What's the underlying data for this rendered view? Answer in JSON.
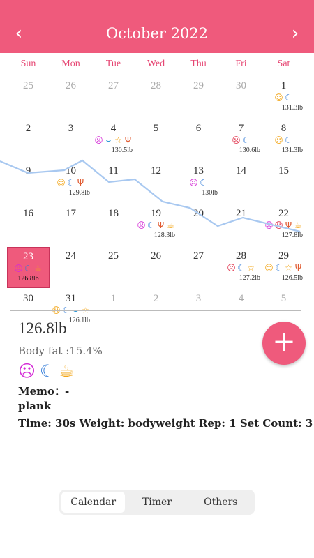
{
  "header": {
    "title": "October 2022",
    "prev_icon": "chevron-left-icon",
    "next_icon": "chevron-right-icon",
    "prev_glyph": "‹",
    "next_glyph": "›"
  },
  "weekdays": [
    "Sun",
    "Mon",
    "Tue",
    "Wed",
    "Thu",
    "Fri",
    "Sat"
  ],
  "colors": {
    "accent": "#ef5a7c",
    "weekday": "#e64572",
    "trend_line": "#a8c8f0"
  },
  "calendar": {
    "selected_day": "23",
    "weeks": [
      [
        {
          "d": "25",
          "o": true
        },
        {
          "d": "26",
          "o": true
        },
        {
          "d": "27",
          "o": true
        },
        {
          "d": "28",
          "o": true
        },
        {
          "d": "29",
          "o": true
        },
        {
          "d": "30",
          "o": true
        },
        {
          "d": "1",
          "icons": [
            "smile",
            "moon"
          ],
          "w": "131.3lb"
        }
      ],
      [
        {
          "d": "2"
        },
        {
          "d": "3"
        },
        {
          "d": "4",
          "icons": [
            "sad",
            "shoe",
            "star",
            "food"
          ],
          "w": "130.5lb"
        },
        {
          "d": "5"
        },
        {
          "d": "6"
        },
        {
          "d": "7",
          "icons": [
            "angry",
            "moon"
          ],
          "w": "130.6lb"
        },
        {
          "d": "8",
          "icons": [
            "smile",
            "moon"
          ],
          "w": "131.3lb"
        }
      ],
      [
        {
          "d": "9"
        },
        {
          "d": "10",
          "icons": [
            "smile",
            "moon",
            "food"
          ],
          "w": "129.8lb"
        },
        {
          "d": "11"
        },
        {
          "d": "12"
        },
        {
          "d": "13",
          "icons": [
            "sad",
            "moon"
          ],
          "w": "130lb"
        },
        {
          "d": "14"
        },
        {
          "d": "15"
        }
      ],
      [
        {
          "d": "16"
        },
        {
          "d": "17"
        },
        {
          "d": "18"
        },
        {
          "d": "19",
          "icons": [
            "sad",
            "moon",
            "food",
            "drink"
          ],
          "w": "128.3lb"
        },
        {
          "d": "20"
        },
        {
          "d": "21"
        },
        {
          "d": "22",
          "icons": [
            "sad",
            "angry",
            "food",
            "drink"
          ],
          "w": "127.8lb"
        }
      ],
      [
        {
          "d": "23",
          "icons": [
            "sad",
            "moon",
            "drink"
          ],
          "w": "126.8lb"
        },
        {
          "d": "24"
        },
        {
          "d": "25"
        },
        {
          "d": "26"
        },
        {
          "d": "27"
        },
        {
          "d": "28",
          "icons": [
            "angry",
            "moon",
            "star"
          ],
          "w": "127.2lb"
        },
        {
          "d": "29",
          "icons": [
            "smile",
            "moon",
            "star",
            "food"
          ],
          "w": "126.5lb"
        }
      ],
      [
        {
          "d": "30"
        },
        {
          "d": "31",
          "icons": [
            "smile",
            "moon",
            "shoe",
            "star"
          ],
          "w": "126.1lb"
        },
        {
          "d": "1",
          "o": true
        },
        {
          "d": "2",
          "o": true
        },
        {
          "d": "3",
          "o": true
        },
        {
          "d": "4",
          "o": true
        },
        {
          "d": "5",
          "o": true
        }
      ]
    ]
  },
  "icon_glyphs": {
    "smile": "☺",
    "sad": "☹",
    "moon": "☾",
    "star": "☆",
    "food": "Ψ",
    "drink": "☕",
    "angry": "☹",
    "shoe": "⌣"
  },
  "detail": {
    "weight": "126.8lb",
    "body_fat": "Body fat :15.4%",
    "icons": [
      "sad",
      "moon",
      "drink"
    ],
    "memo": "Memo：-",
    "exercise": "plank",
    "time_line": "Time: 30s  Weight: bodyweight  Rep: 1  Set Count: 3"
  },
  "fab": {
    "label": "+",
    "icon": "plus-icon"
  },
  "tabs": [
    {
      "label": "Calendar",
      "active": true
    },
    {
      "label": "Timer",
      "active": false
    },
    {
      "label": "Others",
      "active": false
    }
  ]
}
